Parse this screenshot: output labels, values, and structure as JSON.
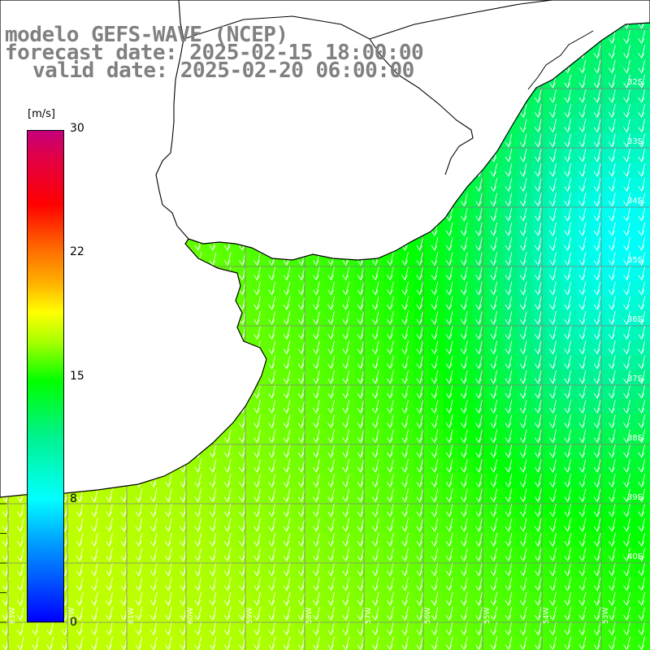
{
  "title": {
    "line1": "modelo GEFS-WAVE (NCEP)",
    "line2": "forecast date: 2025-02-15 18:00:00",
    "line3": "valid date: 2025-02-20 06:00:00"
  },
  "colorbar": {
    "unit": "[m/s]",
    "ticks": [
      "30",
      "22",
      "15",
      "8",
      "0"
    ],
    "tick_values": [
      30,
      22,
      15,
      8,
      0
    ],
    "range": [
      0,
      30
    ],
    "colors": [
      "#0000ff",
      "#0050ff",
      "#00a8ff",
      "#00ffff",
      "#00f28a",
      "#00ff00",
      "#a8ff00",
      "#ffff00",
      "#ffb000",
      "#ff6a00",
      "#ff0000",
      "#e0004a",
      "#c4007c"
    ]
  },
  "map": {
    "variable": "wind speed and direction",
    "wind_direction": "toward south-southwest",
    "land_color": "#ffffff",
    "coast_color": "#000000",
    "grid_color": "#808080",
    "arrow_color": "#ffffff",
    "lat_labels": [
      "32S",
      "33S",
      "34S",
      "35S",
      "36S",
      "37S",
      "38S",
      "39S",
      "40S"
    ],
    "lon_labels": [
      "63W",
      "62W",
      "61W",
      "60W",
      "59W",
      "58W",
      "57W",
      "56W",
      "55W",
      "54W",
      "53W"
    ]
  }
}
